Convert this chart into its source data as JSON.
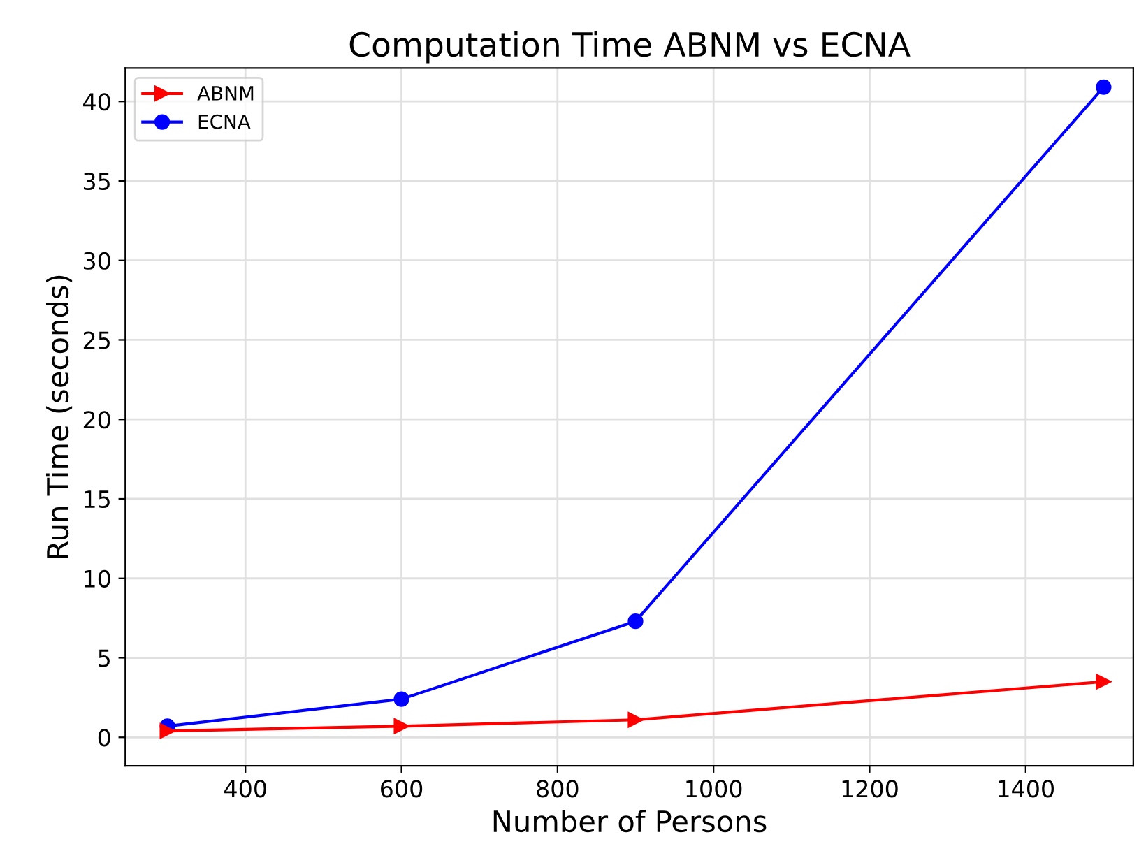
{
  "chart_data": {
    "type": "line",
    "title": "Computation Time ABNM vs ECNA",
    "xlabel": "Number of Persons",
    "ylabel": "Run Time (seconds)",
    "x": [
      300,
      600,
      900,
      1500
    ],
    "series": [
      {
        "name": "ABNM",
        "color": "#ff0000",
        "values": [
          0.4,
          0.7,
          1.1,
          3.5
        ],
        "marker": "triangle"
      },
      {
        "name": "ECNA",
        "color": "#0000ff",
        "values": [
          0.7,
          2.4,
          7.3,
          40.9
        ],
        "marker": "circle"
      }
    ],
    "xlim": [
      246,
      1538
    ],
    "ylim": [
      -1.8,
      42.1
    ],
    "xticks": [
      400,
      600,
      800,
      1000,
      1200,
      1400
    ],
    "yticks": [
      0,
      5,
      10,
      15,
      20,
      25,
      30,
      35,
      40
    ],
    "grid": true,
    "legend": "top left",
    "line_style": "solid"
  }
}
